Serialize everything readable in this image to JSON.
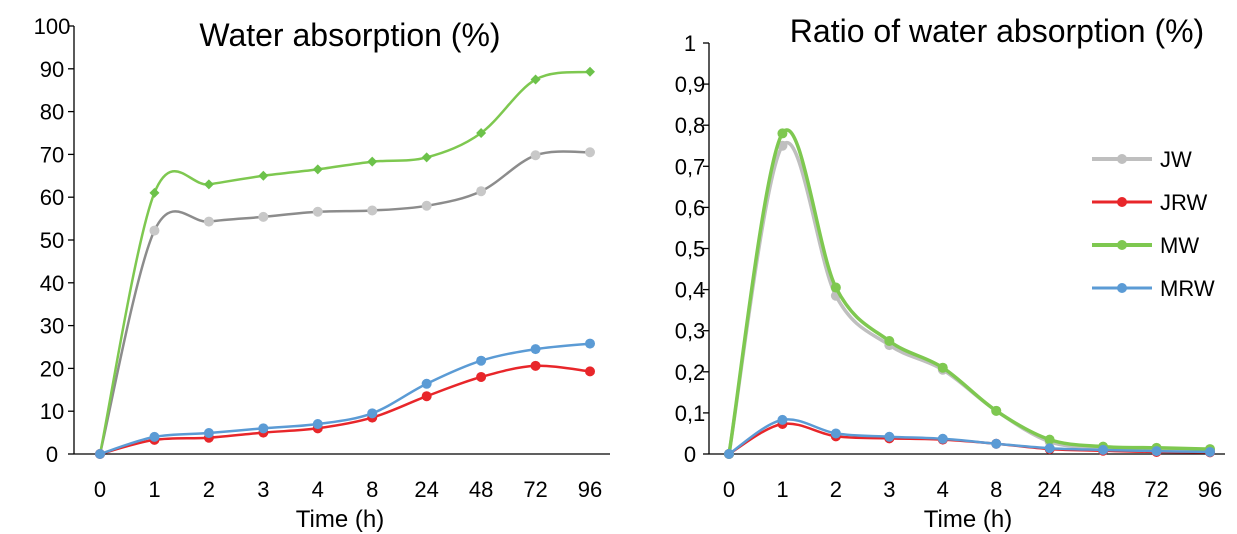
{
  "chart_data": [
    {
      "type": "line",
      "title": "Water absorption (%)",
      "xlabel": "Time (h)",
      "ylabel": "",
      "categories": [
        "0",
        "1",
        "2",
        "3",
        "4",
        "8",
        "24",
        "48",
        "72",
        "96"
      ],
      "ylim": [
        0,
        100
      ],
      "yticks": [
        "0",
        "10",
        "20",
        "30",
        "40",
        "50",
        "60",
        "70",
        "80",
        "90",
        "100"
      ],
      "smooth": true,
      "legend": "none",
      "series": [
        {
          "name": "",
          "color": "#b4b4b4",
          "marker_color": "#c8c8c8",
          "line_color": "#8c8c8c",
          "marker": "circle",
          "values": [
            0,
            52.2,
            54.3,
            55.4,
            56.6,
            56.9,
            58.0,
            61.4,
            69.8,
            70.5
          ]
        },
        {
          "name": "",
          "color": "#7ec850",
          "marker_color": "#6cc24a",
          "line_color": "#7ec850",
          "marker": "diamond",
          "values": [
            0,
            61.0,
            63.0,
            65.0,
            66.5,
            68.3,
            69.3,
            75.0,
            87.5,
            89.3
          ]
        },
        {
          "name": "",
          "color": "#e8262a",
          "marker_color": "#e8262a",
          "line_color": "#e8262a",
          "marker": "circle",
          "values": [
            0,
            3.3,
            3.8,
            5.0,
            6.0,
            8.5,
            13.5,
            18.0,
            20.6,
            19.3
          ]
        },
        {
          "name": "",
          "color": "#5b9bd5",
          "marker_color": "#5b9bd5",
          "line_color": "#5b9bd5",
          "marker": "circle",
          "values": [
            0,
            4.0,
            4.9,
            6.0,
            7.0,
            9.5,
            16.4,
            21.8,
            24.5,
            25.8
          ]
        }
      ]
    },
    {
      "type": "line",
      "title": "Ratio of water absorption (%)",
      "xlabel": "Time (h)",
      "ylabel": "",
      "categories": [
        "0",
        "1",
        "2",
        "3",
        "4",
        "8",
        "24",
        "48",
        "72",
        "96"
      ],
      "ylim": [
        0,
        1
      ],
      "yticks": [
        "0",
        "0,1",
        "0,2",
        "0,3",
        "0,4",
        "0,5",
        "0,6",
        "0,7",
        "0,8",
        "0,9",
        "1"
      ],
      "smooth": true,
      "legend": "right",
      "series": [
        {
          "name": "JW",
          "color": "#b4b4b4",
          "marker_color": "#bfbfbf",
          "line_color": "#bfbfbf",
          "marker": "circle",
          "values": [
            0,
            0.75,
            0.385,
            0.265,
            0.205,
            0.105,
            0.03,
            0.015,
            0.012,
            0.01
          ]
        },
        {
          "name": "JRW",
          "color": "#e8262a",
          "marker_color": "#e8262a",
          "line_color": "#e8262a",
          "marker": "circle",
          "values": [
            0,
            0.073,
            0.043,
            0.038,
            0.035,
            0.025,
            0.012,
            0.008,
            0.005,
            0.004
          ]
        },
        {
          "name": "MW",
          "color": "#7ec850",
          "marker_color": "#7ec850",
          "line_color": "#7ec850",
          "marker": "circle",
          "values": [
            0,
            0.78,
            0.405,
            0.275,
            0.21,
            0.105,
            0.035,
            0.018,
            0.015,
            0.012
          ]
        },
        {
          "name": "MRW",
          "color": "#5b9bd5",
          "marker_color": "#5b9bd5",
          "line_color": "#5b9bd5",
          "marker": "circle",
          "values": [
            0,
            0.083,
            0.05,
            0.042,
            0.037,
            0.025,
            0.014,
            0.01,
            0.007,
            0.005
          ]
        }
      ]
    }
  ]
}
